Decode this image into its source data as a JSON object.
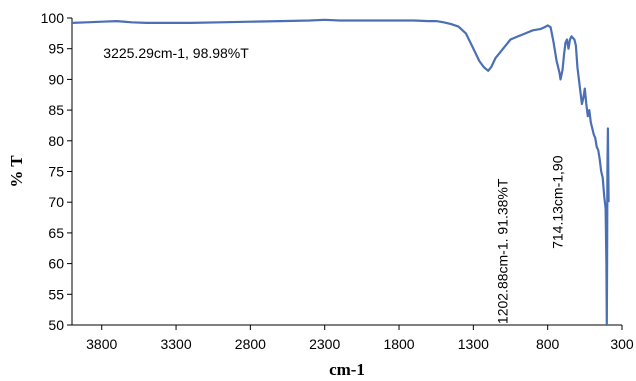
{
  "chart_data": {
    "type": "line",
    "xlabel": "cm-1",
    "ylabel": "% T",
    "xlim": [
      4000,
      300
    ],
    "ylim": [
      50,
      100
    ],
    "x_reversed": true,
    "grid": false,
    "legend": "none",
    "line_color": "#4a6fb5",
    "x_ticks": [
      3800,
      3300,
      2800,
      2300,
      1800,
      1300,
      800,
      300
    ],
    "y_ticks": [
      50,
      55,
      60,
      65,
      70,
      75,
      80,
      85,
      90,
      95,
      100
    ],
    "series": [
      {
        "x": [
          4000,
          3900,
          3800,
          3700,
          3600,
          3500,
          3400,
          3300,
          3200,
          3000,
          2800,
          2600,
          2400,
          2300,
          2200,
          2000,
          1800,
          1700,
          1600,
          1550,
          1500,
          1450,
          1400,
          1350,
          1300,
          1260,
          1230,
          1200,
          1180,
          1150,
          1100,
          1050,
          1000,
          950,
          900,
          850,
          820,
          800,
          780,
          760,
          740,
          720,
          714,
          700,
          690,
          680,
          670,
          660,
          650,
          640,
          620,
          610,
          600,
          590,
          580,
          570,
          560,
          550,
          540,
          530,
          520,
          510,
          500,
          490,
          480,
          470,
          460,
          450,
          440,
          430,
          420,
          410,
          405,
          402,
          400,
          398,
          395,
          392,
          390
        ],
        "y": [
          99.2,
          99.3,
          99.4,
          99.5,
          99.3,
          99.2,
          99.2,
          99.2,
          99.2,
          99.3,
          99.4,
          99.5,
          99.6,
          99.7,
          99.6,
          99.6,
          99.6,
          99.6,
          99.5,
          99.5,
          99.3,
          99.0,
          98.6,
          97.5,
          95.0,
          93.0,
          92.0,
          91.4,
          92.0,
          93.5,
          95.0,
          96.5,
          97.0,
          97.5,
          98.0,
          98.2,
          98.5,
          98.8,
          98.5,
          96.0,
          93.0,
          91.0,
          90.0,
          91.5,
          94.0,
          96.0,
          96.5,
          95.0,
          96.5,
          97.0,
          96.5,
          95.5,
          92.0,
          90.0,
          88.0,
          86.0,
          87.0,
          88.5,
          86.0,
          84.0,
          85.0,
          83.0,
          82.0,
          81.0,
          80.5,
          79.0,
          78.5,
          77.0,
          75.0,
          74.0,
          71.0,
          69.0,
          60.0,
          50.0,
          60.0,
          75.0,
          82.0,
          75.0,
          70.0
        ]
      }
    ],
    "annotations": [
      {
        "text": "3225.29cm-1, 98.98%T",
        "x": 3300,
        "y": 93.5,
        "rotate": 0
      },
      {
        "text": "1202.88cm-1. 91.38%T",
        "x": 1070,
        "y": 62,
        "rotate": -90
      },
      {
        "text": "714.13cm-1,90",
        "x": 700,
        "y": 70,
        "rotate": -90
      }
    ]
  }
}
